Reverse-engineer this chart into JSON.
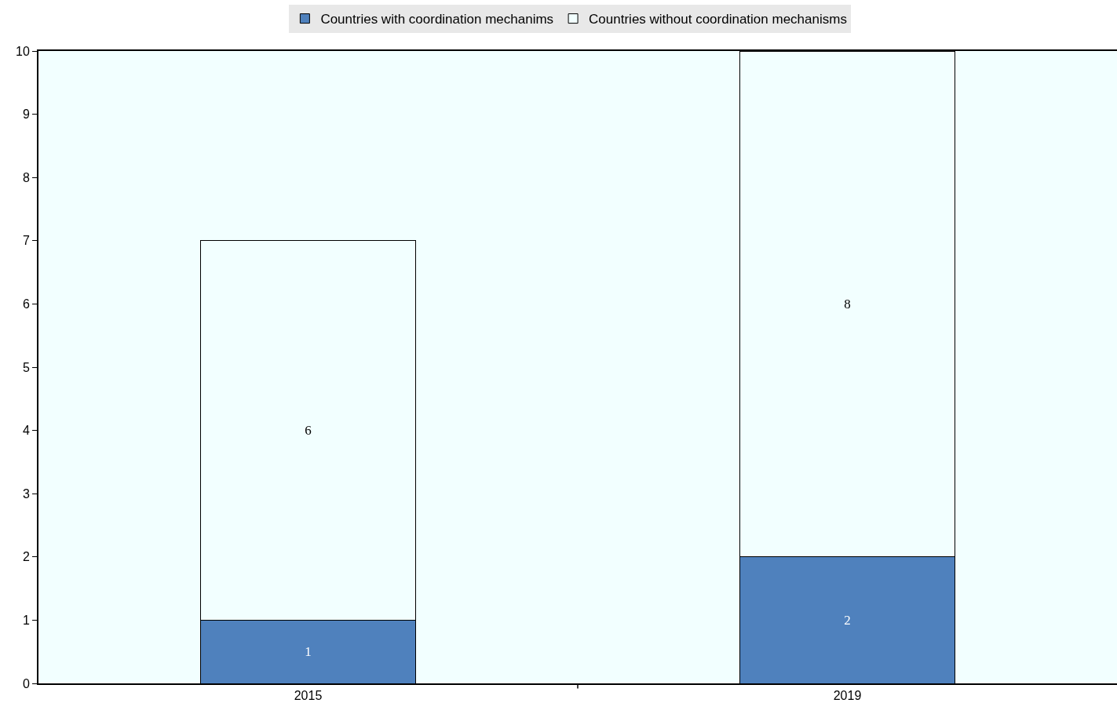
{
  "chart_data": {
    "type": "bar",
    "categories": [
      "2015",
      "2019"
    ],
    "series": [
      {
        "name": "Countries with coordination mechanims",
        "color": "#4f81bd",
        "values": [
          1,
          2
        ]
      },
      {
        "name": "Countries without coordination mechanisms",
        "color": "#f2ffff",
        "values": [
          6,
          8
        ]
      }
    ],
    "stacked": true,
    "ylim": [
      0,
      10
    ],
    "yticks": [
      0,
      1,
      2,
      3,
      4,
      5,
      6,
      7,
      8,
      9,
      10
    ],
    "grid": false,
    "legend": "top",
    "data_labels": true
  }
}
